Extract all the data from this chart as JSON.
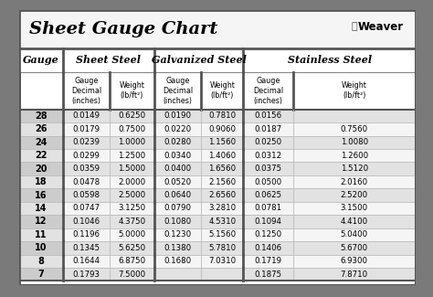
{
  "title": "Sheet Gauge Chart",
  "outer_bg": "#7a7a7a",
  "inner_bg": "#ffffff",
  "title_area_bg": "#f5f5f5",
  "row_odd_bg": "#e2e2e2",
  "row_even_bg": "#f5f5f5",
  "gauge_col_odd_bg": "#cccccc",
  "gauge_col_even_bg": "#e2e2e2",
  "header_bg": "#ffffff",
  "gauges": [
    28,
    26,
    24,
    22,
    20,
    18,
    16,
    14,
    12,
    11,
    10,
    8,
    7
  ],
  "sheet_steel_decimal": [
    "0.0149",
    "0.0179",
    "0.0239",
    "0.0299",
    "0.0359",
    "0.0478",
    "0.0598",
    "0.0747",
    "0.1046",
    "0.1196",
    "0.1345",
    "0.1644",
    "0.1793"
  ],
  "sheet_steel_weight": [
    "0.6250",
    "0.7500",
    "1.0000",
    "1.2500",
    "1.5000",
    "2.0000",
    "2.5000",
    "3.1250",
    "4.3750",
    "5.0000",
    "5.6250",
    "6.8750",
    "7.5000"
  ],
  "galv_decimal": [
    "0.0190",
    "0.0220",
    "0.0280",
    "0.0340",
    "0.0400",
    "0.0520",
    "0.0640",
    "0.0790",
    "0.1080",
    "0.1230",
    "0.1380",
    "0.1680",
    ""
  ],
  "galv_weight": [
    "0.7810",
    "0.9060",
    "1.1560",
    "1.4060",
    "1.6560",
    "2.1560",
    "2.6560",
    "3.2810",
    "4.5310",
    "5.1560",
    "5.7810",
    "7.0310",
    ""
  ],
  "ss_decimal": [
    "0.0156",
    "0.0187",
    "0.0250",
    "0.0312",
    "0.0375",
    "0.0500",
    "0.0625",
    "0.0781",
    "0.1094",
    "0.1250",
    "0.1406",
    "0.1719",
    "0.1875"
  ],
  "ss_weight": [
    "",
    "0.7560",
    "1.0080",
    "1.2600",
    "1.5120",
    "2.0160",
    "2.5200",
    "3.1500",
    "4.4100",
    "5.0400",
    "5.6700",
    "6.9300",
    "7.8710"
  ],
  "divider_color": "#888888",
  "thick_div_color": "#555555",
  "thin_line_color": "#bbbbbb"
}
